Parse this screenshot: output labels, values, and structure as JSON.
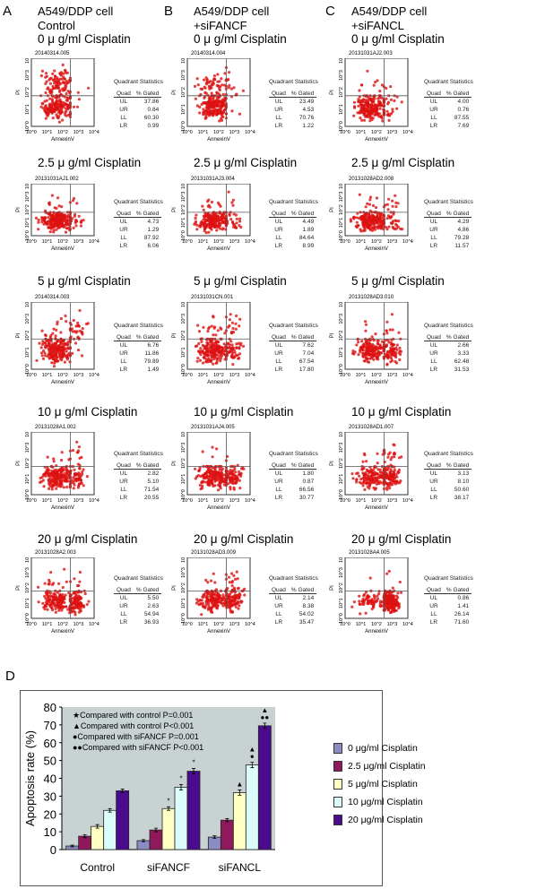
{
  "panels": [
    {
      "letter": "A",
      "line1": "A549/DDP  cell",
      "line2": "Control"
    },
    {
      "letter": "B",
      "line1": "A549/DDP  cell",
      "line2": "+siFANCF"
    },
    {
      "letter": "C",
      "line1": "A549/DDP  cell",
      "line2": "+siFANCL"
    }
  ],
  "conditions": [
    "0 μ g/ml Cisplatin",
    "2.5 μ g/ml Cisplatin",
    "5 μ g/ml Cisplatin",
    "10 μ g/ml Cisplatin",
    "20 μ g/ml Cisplatin"
  ],
  "flow": {
    "stats_title": "Quadrant Statistics",
    "col_quad": "Quad",
    "col_gated": "% Gated",
    "quads": [
      "UL",
      "UR",
      "LL",
      "LR"
    ],
    "x_label": "AnnexinV",
    "y_label": "PI",
    "ticks": [
      "10^0",
      "10^1",
      "10^2",
      "10^3",
      "10^4"
    ],
    "dot_color": "#dd1111",
    "grid": [
      [
        {
          "id": "20140314.005",
          "v": [
            "37.86",
            "0.84",
            "60.30",
            "0.99"
          ]
        },
        {
          "id": "20140314.004",
          "v": [
            "23.49",
            "4.53",
            "70.76",
            "1.22"
          ]
        },
        {
          "id": "20131031AJ2.003",
          "v": [
            "4.00",
            "0.76",
            "87.55",
            "7.69"
          ]
        }
      ],
      [
        {
          "id": "20131031AJ1.002",
          "v": [
            "4.73",
            "1.29",
            "87.92",
            "6.06"
          ]
        },
        {
          "id": "20131031AJ3.004",
          "v": [
            "4.49",
            "1.89",
            "84.64",
            "8.99"
          ]
        },
        {
          "id": "20131028AD2.008",
          "v": [
            "4.29",
            "4.86",
            "79.28",
            "11.57"
          ]
        }
      ],
      [
        {
          "id": "20140314.003",
          "v": [
            "6.76",
            "11.86",
            "79.89",
            "1.49"
          ]
        },
        {
          "id": "20131031CN.001",
          "v": [
            "7.62",
            "7.04",
            "67.54",
            "17.80"
          ]
        },
        {
          "id": "20131028AD3.010",
          "v": [
            "2.66",
            "3.33",
            "62.48",
            "31.53"
          ]
        }
      ],
      [
        {
          "id": "20131028A1.002",
          "v": [
            "2.82",
            "5.10",
            "71.54",
            "20.55"
          ]
        },
        {
          "id": "20131031AJ4.005",
          "v": [
            "1.80",
            "0.87",
            "66.56",
            "30.77"
          ]
        },
        {
          "id": "20131028AD1.007",
          "v": [
            "3.13",
            "8.10",
            "50.60",
            "38.17"
          ]
        }
      ],
      [
        {
          "id": "20131028A2.003",
          "v": [
            "5.50",
            "2.63",
            "54.94",
            "36.93"
          ]
        },
        {
          "id": "20131028AD3.009",
          "v": [
            "2.14",
            "8.38",
            "54.02",
            "35.47"
          ]
        },
        {
          "id": "20131028A4.005",
          "v": [
            "0.86",
            "1.41",
            "26.14",
            "71.60"
          ]
        }
      ]
    ]
  },
  "chart_data": {
    "panel_letter": "D",
    "type": "bar",
    "categories": [
      "Control",
      "siFANCF",
      "siFANCL"
    ],
    "ylabel": "Apoptosis  rate (%)",
    "xlabel": "",
    "ylim": [
      0,
      80
    ],
    "yticks": [
      "0",
      "10",
      "20",
      "30",
      "40",
      "50",
      "60",
      "70",
      "80"
    ],
    "series": [
      {
        "name": "0 μg/ml Cisplatin",
        "color": "#8c8cc4",
        "values": [
          2,
          5,
          7
        ]
      },
      {
        "name": "2.5 μg/ml Cisplatin",
        "color": "#8e1a5c",
        "values": [
          7.5,
          11,
          16.5
        ]
      },
      {
        "name": "5 μg/ml Cisplatin",
        "color": "#ffffc4",
        "values": [
          13,
          23,
          32
        ]
      },
      {
        "name": "10 μg/ml Cisplatin",
        "color": "#dcfcfc",
        "values": [
          22,
          35,
          47.5
        ]
      },
      {
        "name": "20 μg/ml Cisplatin",
        "color": "#4a0c8c",
        "values": [
          33,
          44,
          69.5
        ]
      }
    ],
    "errors": [
      [
        0.5,
        0.6,
        0.7
      ],
      [
        0.8,
        1.0,
        0.9
      ],
      [
        1.0,
        1.0,
        1.5
      ],
      [
        1.0,
        1.5,
        1.5
      ],
      [
        1.0,
        1.5,
        1.5
      ]
    ],
    "annotations": [
      {
        "category": 1,
        "series": 2,
        "mark": "*"
      },
      {
        "category": 1,
        "series": 3,
        "mark": "*"
      },
      {
        "category": 1,
        "series": 4,
        "mark": "*"
      },
      {
        "category": 2,
        "series": 2,
        "mark": "▲"
      },
      {
        "category": 2,
        "series": 3,
        "mark": "▲\n●"
      },
      {
        "category": 2,
        "series": 4,
        "mark": "▲\n●●"
      }
    ],
    "notes": [
      "★Compared with control P=0.001",
      "▲Compared with control P<0.001",
      "●Compared with siFANCF P=0.001",
      "●●Compared with siFANCF P<0.001"
    ],
    "plot_bg": "#c9d2d2",
    "legend": "right"
  }
}
